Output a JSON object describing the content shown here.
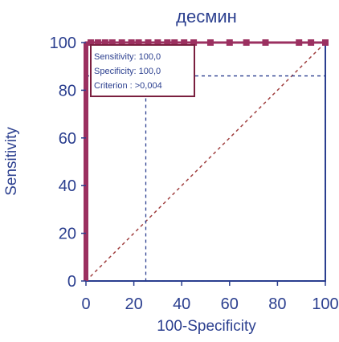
{
  "chart_data": {
    "type": "line",
    "title": "десмин",
    "xlabel": "100-Specificity",
    "ylabel": "Sensitivity",
    "xlim": [
      0,
      100
    ],
    "ylim": [
      0,
      100
    ],
    "xticks": [
      0,
      20,
      40,
      60,
      80,
      100
    ],
    "yticks": [
      0,
      20,
      40,
      60,
      80,
      100
    ],
    "grid": false,
    "series": [
      {
        "values": [
          [
            0,
            0
          ],
          [
            0,
            100
          ],
          [
            2,
            100
          ],
          [
            5,
            100
          ],
          [
            8,
            100
          ],
          [
            11,
            100
          ],
          [
            15,
            100
          ],
          [
            19,
            100
          ],
          [
            22,
            100
          ],
          [
            26,
            100
          ],
          [
            30,
            100
          ],
          [
            34,
            100
          ],
          [
            37,
            100
          ],
          [
            41,
            100
          ],
          [
            45,
            100
          ],
          [
            52,
            100
          ],
          [
            60,
            100
          ],
          [
            67,
            100
          ],
          [
            75,
            100
          ],
          [
            89,
            100
          ],
          [
            94,
            100
          ],
          [
            100,
            100
          ]
        ]
      }
    ],
    "reference_line": [
      [
        0,
        0
      ],
      [
        100,
        100
      ]
    ],
    "dashed_boxes": [
      {
        "x": [
          0,
          25
        ],
        "y": [
          0,
          100
        ]
      },
      {
        "x": [
          0,
          100
        ],
        "y": [
          0,
          86
        ]
      }
    ],
    "annotation": {
      "lines": [
        "Sensitivity: 100,0",
        "Specificity: 100,0",
        "Criterion : >0,004"
      ]
    },
    "colors": {
      "axis": "#2b3f8f",
      "curve": "#9b3060",
      "reference": "#a04040",
      "dashed": "#2b3f8f",
      "annotation_border": "#7a1f3f"
    }
  }
}
